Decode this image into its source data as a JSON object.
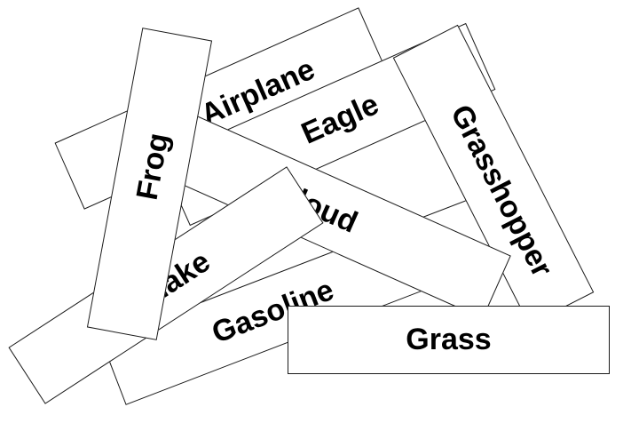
{
  "cards": {
    "gasoline": "Gasoline",
    "airplane": "Airplane",
    "eagle": "Eagle",
    "grasshopper": "Grasshopper",
    "cloud": "Cloud",
    "snake": "Snake",
    "frog": "Frog",
    "grass": "Grass"
  },
  "colors": {
    "card_fill": "#ffffff",
    "card_border": "#1a1a1a",
    "text": "#000000"
  }
}
